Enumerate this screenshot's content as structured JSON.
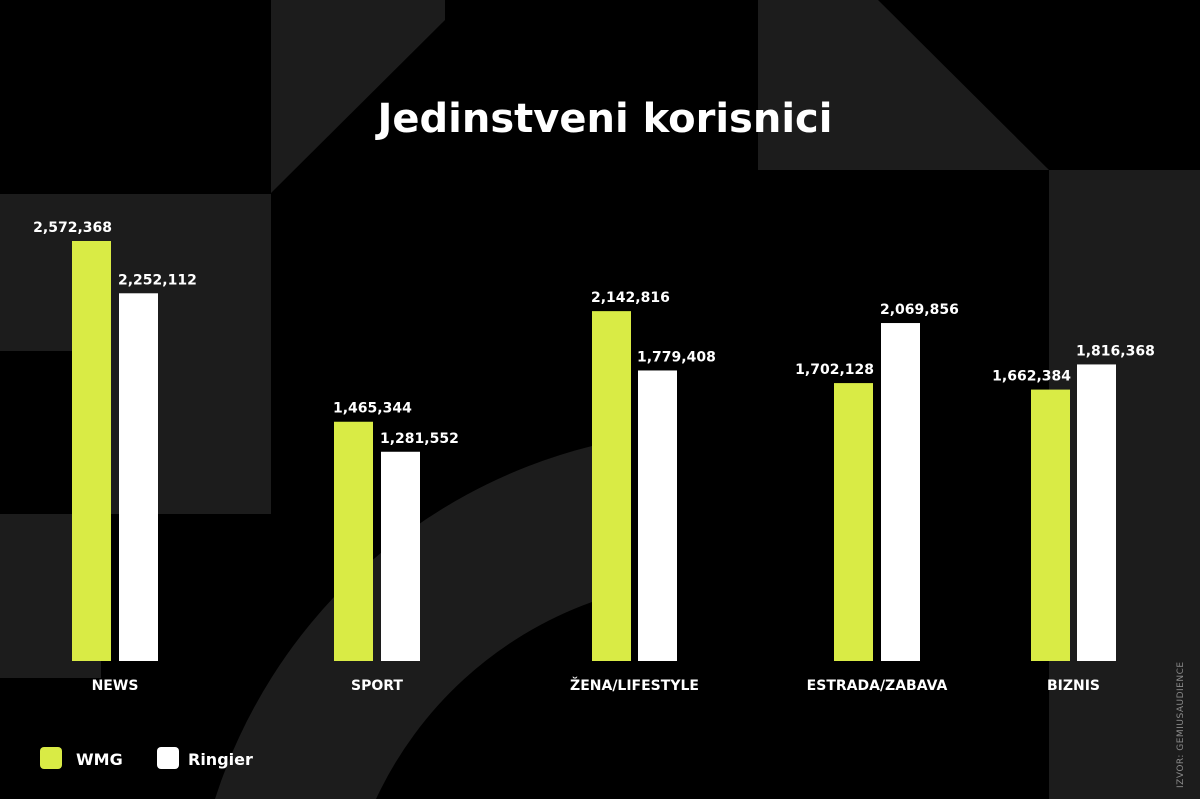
{
  "colors": {
    "background": "#000000",
    "shape": "#1c1c1c",
    "wmg": "#d9eb45",
    "ringier": "#ffffff",
    "text": "#ffffff"
  },
  "source": "IZVOR: GEMIUSAUDIENCE",
  "chart_data": {
    "type": "bar",
    "title": "Jedinstveni korisnici",
    "xlabel": "",
    "ylabel": "",
    "grid": false,
    "legend_position": "bottom-left",
    "categories": [
      "NEWS",
      "SPORT",
      "ŽENA/LIFESTYLE",
      "ESTRADA/ZABAVA",
      "BIZNIS"
    ],
    "series": [
      {
        "name": "WMG",
        "values": [
          2572368,
          1465344,
          2142816,
          1702128,
          1662384
        ],
        "labels": [
          "2,572,368",
          "1,465,344",
          "2,142,816",
          "1,702,128",
          "1,662,384"
        ]
      },
      {
        "name": "Ringier",
        "values": [
          2252112,
          1281552,
          1779408,
          2069856,
          1816368
        ],
        "labels": [
          "2,252,112",
          "1,281,552",
          "1,779,408",
          "2,069,856",
          "1,816,368"
        ]
      }
    ]
  }
}
